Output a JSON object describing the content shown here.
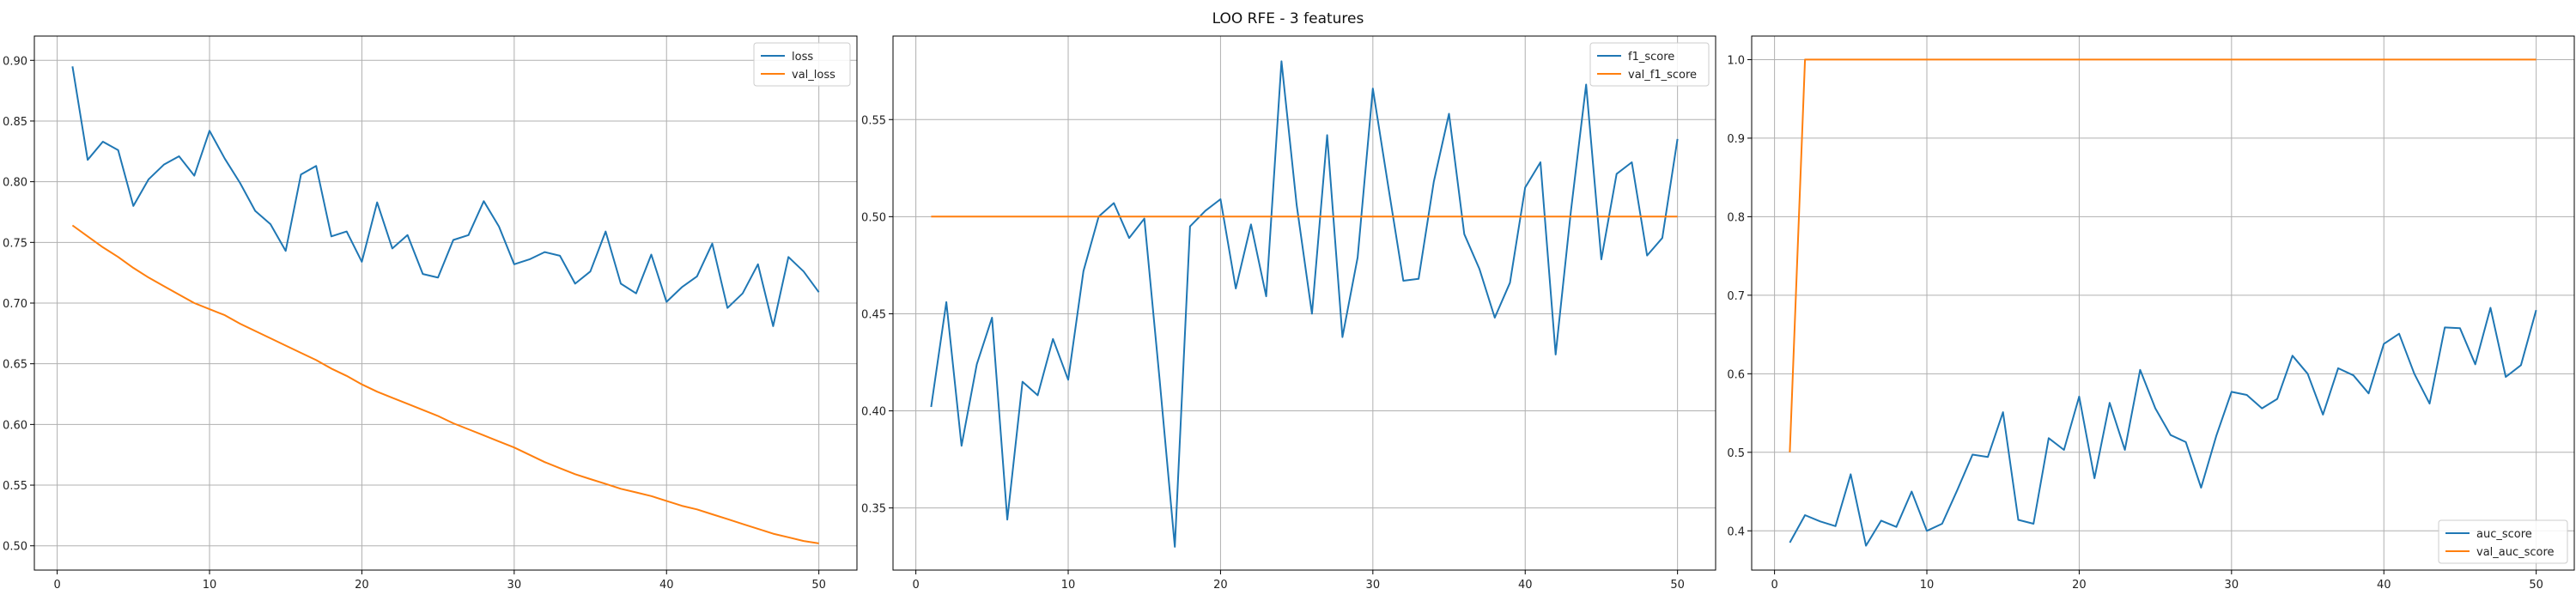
{
  "figure": {
    "title": "LOO RFE - 3 features"
  },
  "chart_data": [
    {
      "type": "line",
      "xlabel": "",
      "ylabel": "",
      "xlim": [
        -1.5,
        52.5
      ],
      "ylim": [
        0.48,
        0.92
      ],
      "xticks": [
        0,
        10,
        20,
        30,
        40,
        50
      ],
      "yticks": [
        0.5,
        0.55,
        0.6,
        0.65,
        0.7,
        0.75,
        0.8,
        0.85,
        0.9
      ],
      "ytick_labels": [
        "0.50",
        "0.55",
        "0.60",
        "0.65",
        "0.70",
        "0.75",
        "0.80",
        "0.85",
        "0.90"
      ],
      "grid": true,
      "legend_position": "upper right",
      "x": [
        1,
        2,
        3,
        4,
        5,
        6,
        7,
        8,
        9,
        10,
        11,
        12,
        13,
        14,
        15,
        16,
        17,
        18,
        19,
        20,
        21,
        22,
        23,
        24,
        25,
        26,
        27,
        28,
        29,
        30,
        31,
        32,
        33,
        34,
        35,
        36,
        37,
        38,
        39,
        40,
        41,
        42,
        43,
        44,
        45,
        46,
        47,
        48,
        49,
        50
      ],
      "series": [
        {
          "name": "loss",
          "color": "#1f77b4",
          "values": [
            0.895,
            0.818,
            0.833,
            0.826,
            0.78,
            0.802,
            0.814,
            0.821,
            0.805,
            0.842,
            0.819,
            0.799,
            0.776,
            0.765,
            0.743,
            0.806,
            0.813,
            0.755,
            0.759,
            0.734,
            0.783,
            0.745,
            0.756,
            0.724,
            0.721,
            0.752,
            0.756,
            0.784,
            0.763,
            0.732,
            0.736,
            0.742,
            0.739,
            0.716,
            0.726,
            0.759,
            0.716,
            0.708,
            0.74,
            0.701,
            0.713,
            0.722,
            0.749,
            0.696,
            0.708,
            0.732,
            0.681,
            0.738,
            0.726,
            0.709
          ]
        },
        {
          "name": "val_loss",
          "color": "#ff7f0e",
          "values": [
            0.764,
            0.755,
            0.746,
            0.738,
            0.729,
            0.721,
            0.714,
            0.707,
            0.7,
            0.695,
            0.69,
            0.683,
            0.677,
            0.671,
            0.665,
            0.659,
            0.653,
            0.646,
            0.64,
            0.633,
            0.627,
            0.622,
            0.617,
            0.612,
            0.607,
            0.601,
            0.596,
            0.591,
            0.586,
            0.581,
            0.575,
            0.569,
            0.564,
            0.559,
            0.555,
            0.551,
            0.547,
            0.544,
            0.541,
            0.537,
            0.533,
            0.53,
            0.526,
            0.522,
            0.518,
            0.514,
            0.51,
            0.507,
            0.504,
            0.502
          ]
        }
      ]
    },
    {
      "type": "line",
      "xlabel": "",
      "ylabel": "",
      "xlim": [
        -1.5,
        52.5
      ],
      "ylim": [
        0.318,
        0.593
      ],
      "xticks": [
        0,
        10,
        20,
        30,
        40,
        50
      ],
      "yticks": [
        0.35,
        0.4,
        0.45,
        0.5,
        0.55
      ],
      "ytick_labels": [
        "0.35",
        "0.40",
        "0.45",
        "0.50",
        "0.55"
      ],
      "grid": true,
      "legend_position": "upper right",
      "x": [
        1,
        2,
        3,
        4,
        5,
        6,
        7,
        8,
        9,
        10,
        11,
        12,
        13,
        14,
        15,
        16,
        17,
        18,
        19,
        20,
        21,
        22,
        23,
        24,
        25,
        26,
        27,
        28,
        29,
        30,
        31,
        32,
        33,
        34,
        35,
        36,
        37,
        38,
        39,
        40,
        41,
        42,
        43,
        44,
        45,
        46,
        47,
        48,
        49,
        50
      ],
      "series": [
        {
          "name": "f1_score",
          "color": "#1f77b4",
          "values": [
            0.402,
            0.456,
            0.382,
            0.424,
            0.448,
            0.344,
            0.415,
            0.408,
            0.437,
            0.416,
            0.472,
            0.5,
            0.507,
            0.489,
            0.499,
            0.416,
            0.33,
            0.495,
            0.503,
            0.509,
            0.463,
            0.496,
            0.459,
            0.58,
            0.506,
            0.45,
            0.542,
            0.438,
            0.479,
            0.566,
            0.516,
            0.467,
            0.468,
            0.518,
            0.553,
            0.491,
            0.473,
            0.448,
            0.466,
            0.515,
            0.528,
            0.429,
            0.503,
            0.568,
            0.478,
            0.522,
            0.528,
            0.48,
            0.489,
            0.54
          ]
        },
        {
          "name": "val_f1_score",
          "color": "#ff7f0e",
          "values": [
            0.5,
            0.5,
            0.5,
            0.5,
            0.5,
            0.5,
            0.5,
            0.5,
            0.5,
            0.5,
            0.5,
            0.5,
            0.5,
            0.5,
            0.5,
            0.5,
            0.5,
            0.5,
            0.5,
            0.5,
            0.5,
            0.5,
            0.5,
            0.5,
            0.5,
            0.5,
            0.5,
            0.5,
            0.5,
            0.5,
            0.5,
            0.5,
            0.5,
            0.5,
            0.5,
            0.5,
            0.5,
            0.5,
            0.5,
            0.5,
            0.5,
            0.5,
            0.5,
            0.5,
            0.5,
            0.5,
            0.5,
            0.5,
            0.5,
            0.5
          ]
        }
      ]
    },
    {
      "type": "line",
      "xlabel": "",
      "ylabel": "",
      "xlim": [
        -1.5,
        52.5
      ],
      "ylim": [
        0.35,
        1.03
      ],
      "xticks": [
        0,
        10,
        20,
        30,
        40,
        50
      ],
      "yticks": [
        0.4,
        0.5,
        0.6,
        0.7,
        0.8,
        0.9,
        1.0
      ],
      "ytick_labels": [
        "0.4",
        "0.5",
        "0.6",
        "0.7",
        "0.8",
        "0.9",
        "1.0"
      ],
      "grid": true,
      "legend_position": "lower right",
      "x": [
        1,
        2,
        3,
        4,
        5,
        6,
        7,
        8,
        9,
        10,
        11,
        12,
        13,
        14,
        15,
        16,
        17,
        18,
        19,
        20,
        21,
        22,
        23,
        24,
        25,
        26,
        27,
        28,
        29,
        30,
        31,
        32,
        33,
        34,
        35,
        36,
        37,
        38,
        39,
        40,
        41,
        42,
        43,
        44,
        45,
        46,
        47,
        48,
        49,
        50
      ],
      "series": [
        {
          "name": "auc_score",
          "color": "#1f77b4",
          "values": [
            0.385,
            0.42,
            0.412,
            0.406,
            0.472,
            0.381,
            0.413,
            0.405,
            0.45,
            0.4,
            0.409,
            0.452,
            0.497,
            0.494,
            0.551,
            0.414,
            0.409,
            0.518,
            0.503,
            0.571,
            0.467,
            0.563,
            0.503,
            0.605,
            0.556,
            0.522,
            0.513,
            0.455,
            0.521,
            0.577,
            0.573,
            0.556,
            0.568,
            0.623,
            0.6,
            0.548,
            0.607,
            0.598,
            0.575,
            0.638,
            0.651,
            0.6,
            0.562,
            0.659,
            0.658,
            0.612,
            0.684,
            0.596,
            0.611,
            0.681
          ]
        },
        {
          "name": "val_auc_score",
          "color": "#ff7f0e",
          "values": [
            0.5,
            1.0,
            1.0,
            1.0,
            1.0,
            1.0,
            1.0,
            1.0,
            1.0,
            1.0,
            1.0,
            1.0,
            1.0,
            1.0,
            1.0,
            1.0,
            1.0,
            1.0,
            1.0,
            1.0,
            1.0,
            1.0,
            1.0,
            1.0,
            1.0,
            1.0,
            1.0,
            1.0,
            1.0,
            1.0,
            1.0,
            1.0,
            1.0,
            1.0,
            1.0,
            1.0,
            1.0,
            1.0,
            1.0,
            1.0,
            1.0,
            1.0,
            1.0,
            1.0,
            1.0,
            1.0,
            1.0,
            1.0,
            1.0,
            1.0
          ]
        }
      ]
    }
  ]
}
